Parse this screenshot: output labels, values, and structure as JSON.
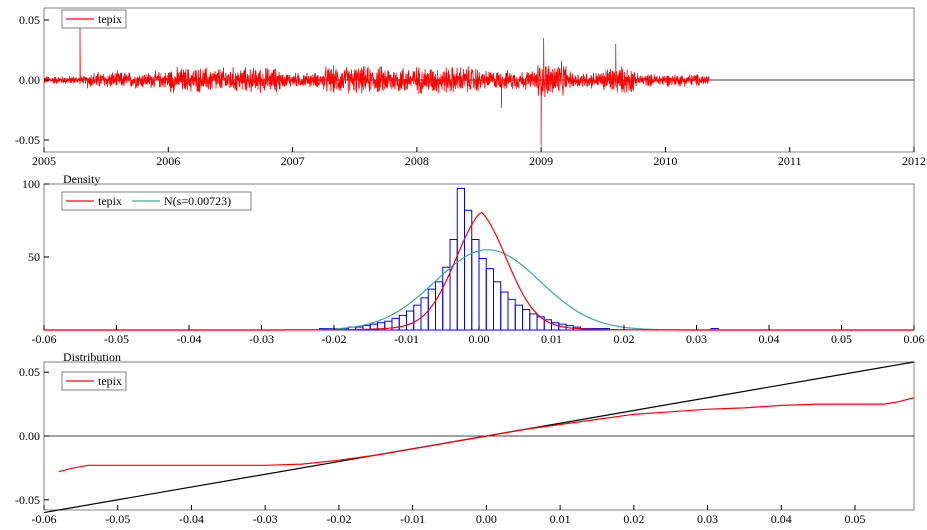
{
  "colors": {
    "series_red": "#ff0000",
    "normal_teal": "#3aaaa0",
    "hist_blue": "#0000ff",
    "axis_black": "#000000",
    "frame_gray": "#808080"
  },
  "chart_data": [
    {
      "type": "line",
      "title": "",
      "legend": {
        "position": "top-left",
        "entries": [
          "tepix"
        ]
      },
      "xlim": [
        2005,
        2012
      ],
      "ylim": [
        -0.06,
        0.06
      ],
      "xticks": [
        "2005",
        "2006",
        "2007",
        "2008",
        "2009",
        "2010",
        "2011",
        "2012"
      ],
      "yticks": [
        "0.05",
        "0.00",
        "-0.05"
      ],
      "series": [
        {
          "name": "tepix",
          "segments": [
            {
              "start": 2005.0,
              "end": 2005.35,
              "amp": 0.004
            },
            {
              "start": 2005.35,
              "end": 2006.0,
              "amp": 0.008
            },
            {
              "start": 2006.0,
              "end": 2006.9,
              "amp": 0.012
            },
            {
              "start": 2006.9,
              "end": 2007.25,
              "amp": 0.007
            },
            {
              "start": 2007.25,
              "end": 2008.5,
              "amp": 0.013
            },
            {
              "start": 2008.5,
              "end": 2008.95,
              "amp": 0.009
            },
            {
              "start": 2008.95,
              "end": 2009.2,
              "amp": 0.017
            },
            {
              "start": 2009.2,
              "end": 2009.5,
              "amp": 0.008
            },
            {
              "start": 2009.5,
              "end": 2009.75,
              "amp": 0.013
            },
            {
              "start": 2009.75,
              "end": 2010.35,
              "amp": 0.006
            }
          ],
          "spikes": [
            {
              "x": 2005.29,
              "y": 0.044
            },
            {
              "x": 2009.0,
              "y": -0.055
            },
            {
              "x": 2009.02,
              "y": 0.035
            },
            {
              "x": 2009.6,
              "y": 0.03
            },
            {
              "x": 2008.68,
              "y": -0.023
            }
          ]
        }
      ]
    },
    {
      "type": "bar",
      "title": "Density",
      "legend": {
        "position": "top-left",
        "entries": [
          "tepix",
          "N(s=0.00723)"
        ]
      },
      "xlim": [
        -0.06,
        0.06
      ],
      "ylim": [
        0,
        100
      ],
      "xticks": [
        "-0.06",
        "-0.05",
        "-0.04",
        "-0.03",
        "-0.02",
        "-0.01",
        "0.00",
        "0.01",
        "0.02",
        "0.03",
        "0.04",
        "0.05",
        "0.06"
      ],
      "yticks": [
        "100",
        "50"
      ],
      "histogram": {
        "bin_width": 0.001,
        "bins_start": -0.022,
        "values": [
          1,
          1,
          1,
          1,
          2,
          2,
          3,
          4,
          5,
          6,
          8,
          10,
          13,
          17,
          22,
          28,
          33,
          43,
          62,
          97,
          82,
          62,
          49,
          42,
          33,
          26,
          21,
          17,
          14,
          11,
          9,
          7,
          5,
          4,
          3,
          2,
          1,
          1,
          1,
          1
        ],
        "outliers": [
          {
            "x": 0.032,
            "value": 1
          }
        ]
      },
      "series": [
        {
          "name": "tepix",
          "kind": "kernel",
          "peak": 81,
          "center": 0.0003,
          "bandwidth": 0.0038
        },
        {
          "name": "N(s=0.00723)",
          "kind": "normal",
          "mean": 0.0012,
          "sd": 0.00723,
          "peak": 55
        }
      ]
    },
    {
      "type": "line",
      "title": "Distribution",
      "legend": {
        "position": "top-left",
        "entries": [
          "tepix"
        ]
      },
      "xlim": [
        -0.06,
        0.058
      ],
      "ylim": [
        -0.058,
        0.058
      ],
      "xticks": [
        "-0.06",
        "-0.05",
        "-0.04",
        "-0.03",
        "-0.02",
        "-0.01",
        "0.00",
        "0.01",
        "0.02",
        "0.03",
        "0.04",
        "0.05"
      ],
      "yticks": [
        "0.05",
        "0.00",
        "-0.05"
      ],
      "series": [
        {
          "name": "tepix",
          "x": [
            -0.058,
            -0.056,
            -0.054,
            -0.05,
            -0.04,
            -0.03,
            -0.025,
            -0.02,
            -0.015,
            -0.01,
            -0.005,
            0.0,
            0.005,
            0.01,
            0.015,
            0.02,
            0.025,
            0.03,
            0.035,
            0.04,
            0.045,
            0.05,
            0.054,
            0.056,
            0.058
          ],
          "y": [
            -0.028,
            -0.025,
            -0.023,
            -0.023,
            -0.023,
            -0.023,
            -0.022,
            -0.019,
            -0.015,
            -0.01,
            -0.005,
            0.0,
            0.005,
            0.009,
            0.013,
            0.017,
            0.019,
            0.021,
            0.022,
            0.024,
            0.025,
            0.025,
            0.025,
            0.027,
            0.03
          ]
        },
        {
          "name": "",
          "x": [
            -0.06,
            0.058
          ],
          "y": [
            -0.06,
            0.058
          ]
        }
      ]
    }
  ]
}
